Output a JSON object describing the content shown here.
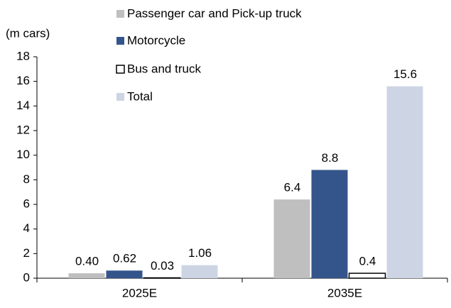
{
  "chart_data": {
    "type": "bar",
    "y_axis_label": "(m cars)",
    "categories": [
      "2025E",
      "2035E"
    ],
    "series": [
      {
        "name": "Passenger car and Pick-up truck",
        "color": "#bfbfbf",
        "values": [
          0.4,
          6.4
        ],
        "value_labels": [
          "0.40",
          "6.4"
        ]
      },
      {
        "name": "Motorcycle",
        "color": "#34558b",
        "values": [
          0.62,
          8.8
        ],
        "value_labels": [
          "0.62",
          "8.8"
        ]
      },
      {
        "name": "Bus and truck",
        "color": "#ffffff",
        "values": [
          0.03,
          0.4
        ],
        "value_labels": [
          "0.03",
          "0.4"
        ]
      },
      {
        "name": "Total",
        "color": "#cdd5e4",
        "values": [
          1.06,
          15.6
        ],
        "value_labels": [
          "1.06",
          "15.6"
        ]
      }
    ],
    "ylim": [
      0,
      18
    ],
    "yticks": [
      0,
      2,
      4,
      6,
      8,
      10,
      12,
      14,
      16,
      18
    ],
    "grid": false
  }
}
